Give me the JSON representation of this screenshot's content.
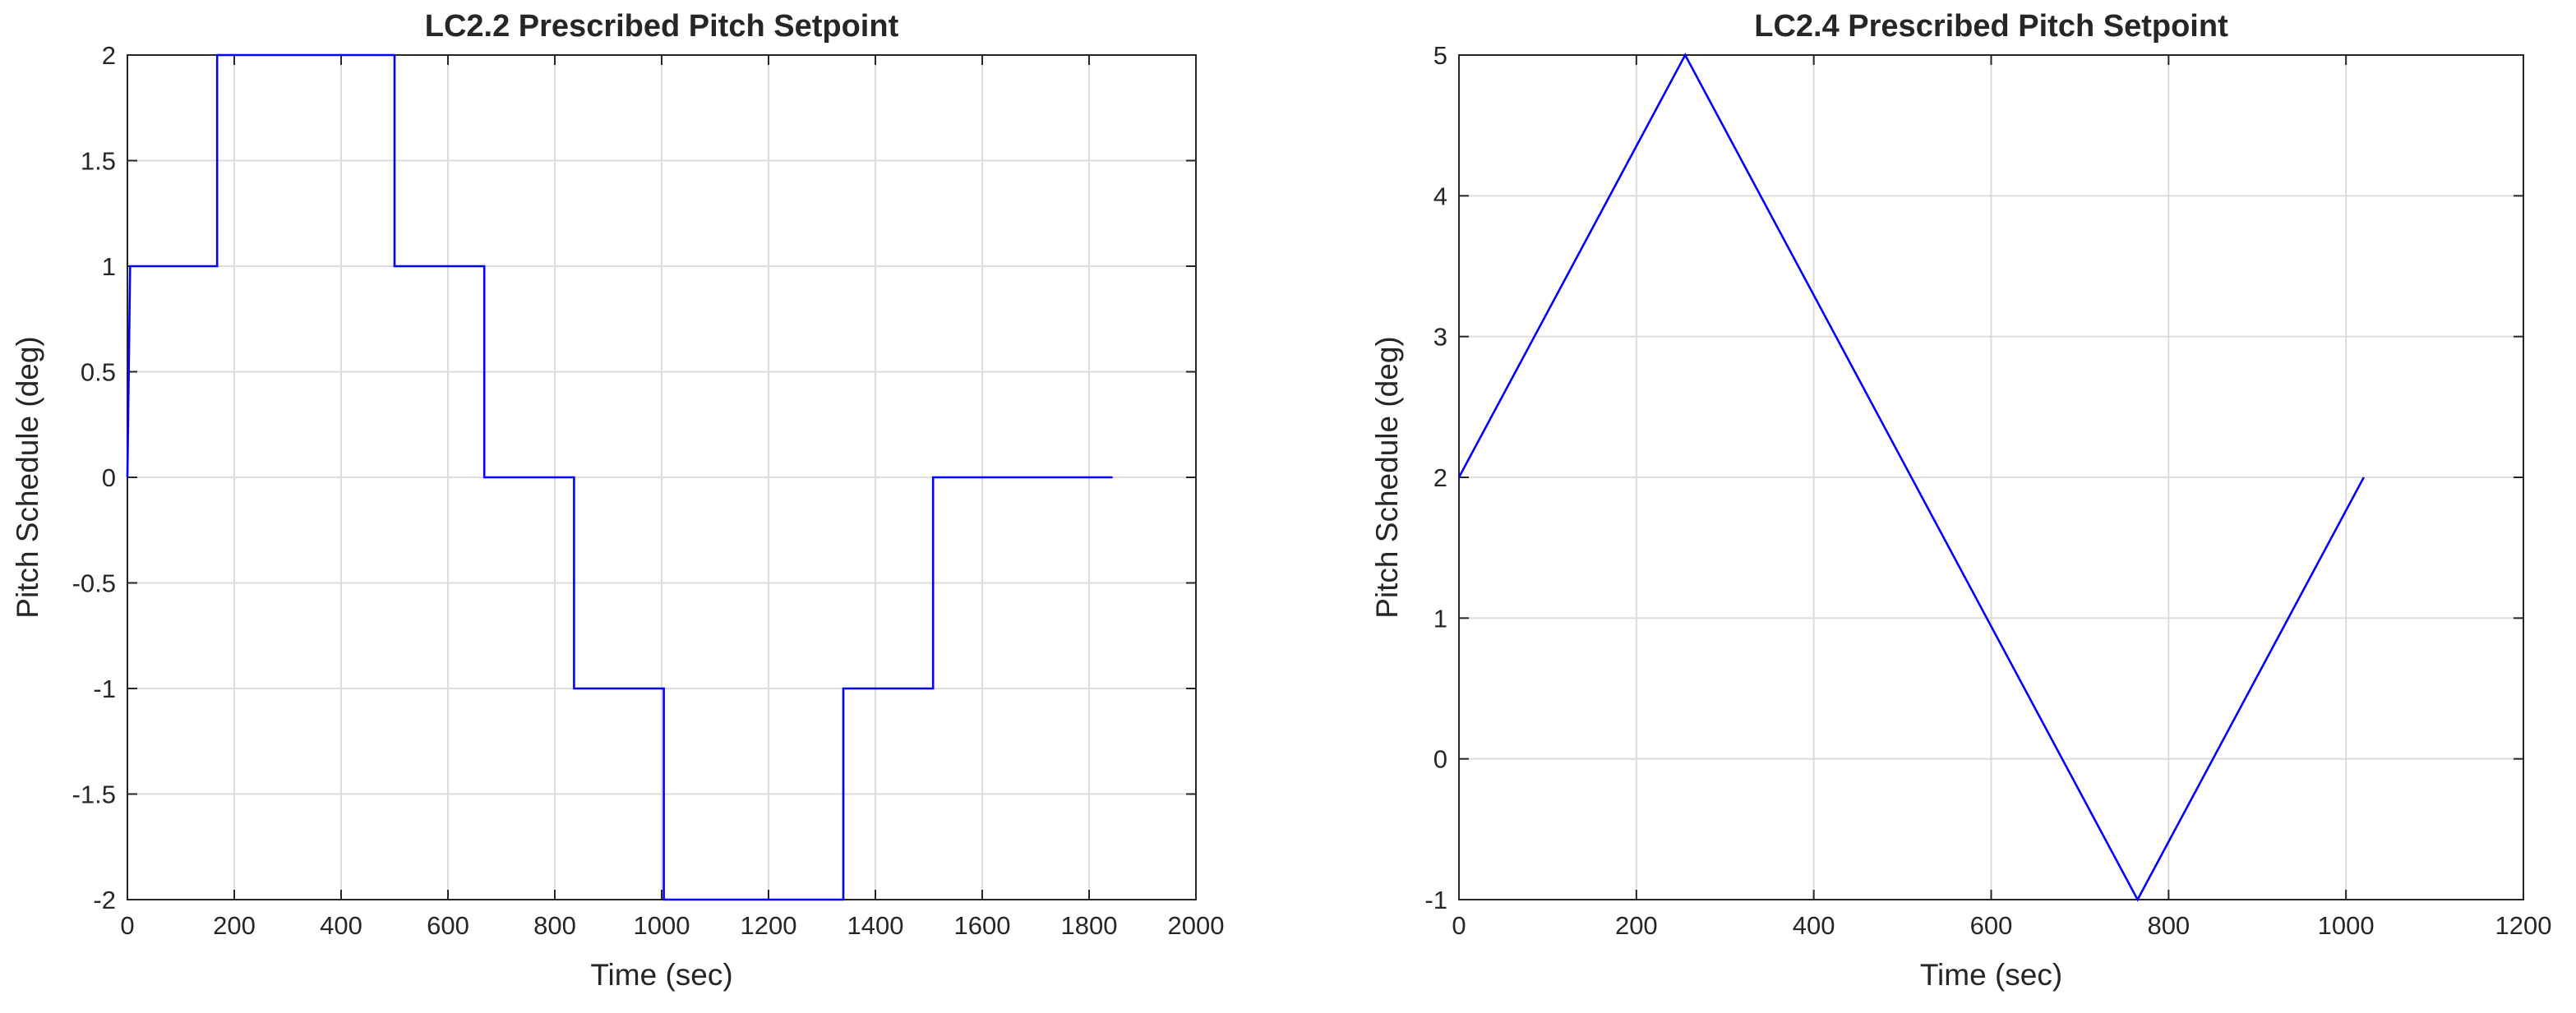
{
  "chart_data": [
    {
      "type": "line",
      "title": "LC2.2 Prescribed Pitch Setpoint",
      "xlabel": "Time (sec)",
      "ylabel": "Pitch Schedule (deg)",
      "xlim": [
        0,
        2000
      ],
      "ylim": [
        -2,
        2
      ],
      "xticks": [
        0,
        200,
        400,
        600,
        800,
        1000,
        1200,
        1400,
        1600,
        1800,
        2000
      ],
      "yticks": [
        -2,
        -1.5,
        -1,
        -0.5,
        0,
        0.5,
        1,
        1.5,
        2
      ],
      "xtick_labels": [
        "0",
        "200",
        "400",
        "600",
        "800",
        "1000",
        "1200",
        "1400",
        "1600",
        "1800",
        "2000"
      ],
      "ytick_labels": [
        "-2",
        "-1.5",
        "-1",
        "-0.5",
        "0",
        "0.5",
        "1",
        "1.5",
        "2"
      ],
      "grid": true,
      "series": [
        {
          "color": "#0000ff",
          "x": [
            0,
            5,
            5,
            168,
            168,
            500,
            500,
            668,
            668,
            836,
            836,
            1004,
            1004,
            1340,
            1340,
            1508,
            1508,
            1844
          ],
          "y": [
            0,
            1,
            1,
            1,
            2,
            2,
            1,
            1,
            0,
            0,
            -1,
            -1,
            -2,
            -2,
            -1,
            -1,
            0,
            0
          ]
        }
      ]
    },
    {
      "type": "line",
      "title": "LC2.4 Prescribed Pitch Setpoint",
      "xlabel": "Time (sec)",
      "ylabel": "Pitch Schedule (deg)",
      "xlim": [
        0,
        1200
      ],
      "ylim": [
        -1,
        5
      ],
      "xticks": [
        0,
        200,
        400,
        600,
        800,
        1000,
        1200
      ],
      "yticks": [
        -1,
        0,
        1,
        2,
        3,
        4,
        5
      ],
      "xtick_labels": [
        "0",
        "200",
        "400",
        "600",
        "800",
        "1000",
        "1200"
      ],
      "ytick_labels": [
        "-1",
        "0",
        "1",
        "2",
        "3",
        "4",
        "5"
      ],
      "grid": true,
      "series": [
        {
          "color": "#0000ff",
          "x": [
            0,
            255,
            765,
            1020
          ],
          "y": [
            2,
            5,
            -1,
            2
          ]
        }
      ]
    }
  ]
}
